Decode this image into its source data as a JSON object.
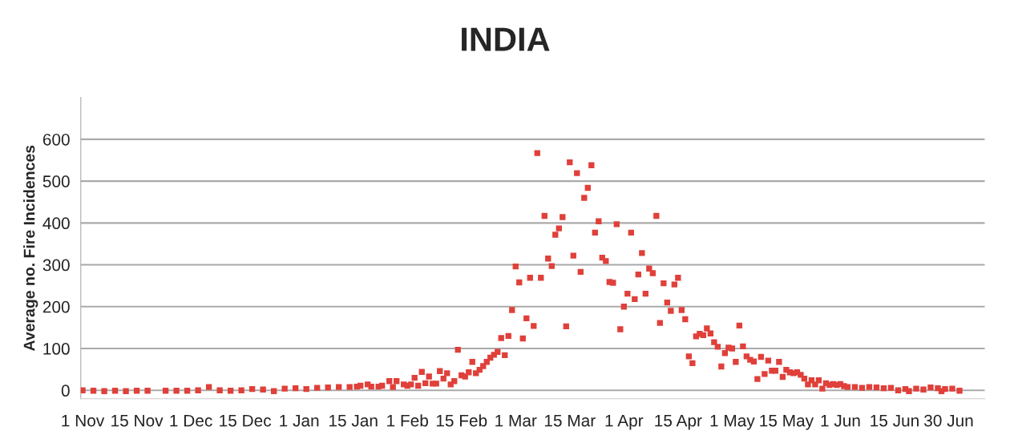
{
  "chart_data": {
    "type": "scatter",
    "title": "INDIA",
    "ylabel": "Average no. Fire Incidences",
    "categories": [
      "1 Nov",
      null,
      null,
      null,
      null,
      null,
      null,
      null,
      null,
      null,
      null,
      null,
      null,
      null,
      null,
      "15 Nov",
      null,
      null,
      null,
      null,
      null,
      null,
      null,
      null,
      null,
      null,
      null,
      null,
      null,
      null,
      "1 Dec",
      null,
      null,
      null,
      null,
      null,
      null,
      null,
      null,
      null,
      null,
      null,
      null,
      null,
      null,
      "15 Dec",
      null,
      null,
      null,
      null,
      null,
      null,
      null,
      null,
      null,
      null,
      null,
      null,
      null,
      null,
      "1 Jan",
      null,
      null,
      null,
      null,
      null,
      null,
      null,
      null,
      null,
      null,
      null,
      null,
      null,
      null,
      "15 Jan",
      null,
      null,
      null,
      null,
      null,
      null,
      null,
      null,
      null,
      null,
      null,
      null,
      null,
      null,
      "1 Feb",
      null,
      null,
      null,
      null,
      null,
      null,
      null,
      null,
      null,
      null,
      null,
      null,
      null,
      null,
      "15 Feb",
      null,
      null,
      null,
      null,
      null,
      null,
      null,
      null,
      null,
      null,
      null,
      null,
      null,
      null,
      "1 Mar",
      null,
      null,
      null,
      null,
      null,
      null,
      null,
      null,
      null,
      null,
      null,
      null,
      null,
      null,
      "15 Mar",
      null,
      null,
      null,
      null,
      null,
      null,
      null,
      null,
      null,
      null,
      null,
      null,
      null,
      null,
      "1 Apr",
      null,
      null,
      null,
      null,
      null,
      null,
      null,
      null,
      null,
      null,
      null,
      null,
      null,
      null,
      "15 Apr",
      null,
      null,
      null,
      null,
      null,
      null,
      null,
      null,
      null,
      null,
      null,
      null,
      null,
      null,
      "1 May",
      null,
      null,
      null,
      null,
      null,
      null,
      null,
      null,
      null,
      null,
      null,
      null,
      null,
      null,
      "15 May",
      null,
      null,
      null,
      null,
      null,
      null,
      null,
      null,
      null,
      null,
      null,
      null,
      null,
      null,
      "1 Jun",
      null,
      null,
      null,
      null,
      null,
      null,
      null,
      null,
      null,
      null,
      null,
      null,
      null,
      null,
      "15 Jun",
      null,
      null,
      null,
      null,
      null,
      null,
      null,
      null,
      null,
      null,
      null,
      null,
      null,
      null,
      "30 Jun",
      null,
      null,
      null
    ],
    "series": [
      {
        "color": "#e0403a",
        "values": [
          0,
          null,
          null,
          -1,
          null,
          null,
          -2,
          null,
          null,
          -1,
          null,
          null,
          -2,
          null,
          null,
          -1,
          null,
          null,
          -1,
          null,
          null,
          null,
          null,
          -1,
          null,
          null,
          -1,
          null,
          null,
          -1,
          null,
          null,
          0,
          null,
          null,
          8,
          null,
          null,
          0,
          null,
          null,
          -1,
          null,
          null,
          0,
          null,
          null,
          3,
          null,
          null,
          2,
          null,
          null,
          -2,
          null,
          null,
          4,
          null,
          null,
          5,
          null,
          null,
          3,
          null,
          null,
          6,
          null,
          null,
          7,
          null,
          null,
          8,
          null,
          null,
          8,
          null,
          9,
          11,
          null,
          14,
          9,
          null,
          9,
          11,
          null,
          22,
          8,
          22,
          null,
          14,
          11,
          14,
          30,
          11,
          44,
          17,
          33,
          16,
          16,
          46,
          28,
          41,
          14,
          22,
          97,
          36,
          33,
          43,
          68,
          41,
          49,
          58,
          68,
          78,
          85,
          92,
          125,
          84,
          130,
          192,
          296,
          258,
          124,
          172,
          269,
          154,
          567,
          269,
          417,
          315,
          297,
          372,
          387,
          414,
          153,
          545,
          322,
          519,
          283,
          460,
          484,
          538,
          377,
          404,
          317,
          309,
          259,
          257,
          397,
          146,
          200,
          231,
          377,
          218,
          277,
          328,
          231,
          291,
          280,
          417,
          161,
          256,
          210,
          190,
          253,
          269,
          192,
          170,
          81,
          65,
          129,
          135,
          132,
          148,
          136,
          115,
          104,
          57,
          89,
          102,
          100,
          68,
          155,
          105,
          81,
          73,
          69,
          27,
          80,
          39,
          71,
          47,
          47,
          68,
          32,
          49,
          43,
          41,
          43,
          37,
          28,
          14,
          24,
          14,
          24,
          4,
          17,
          13,
          15,
          13,
          15,
          10,
          8,
          null,
          8,
          null,
          6,
          null,
          8,
          null,
          7,
          null,
          5,
          null,
          6,
          null,
          0,
          null,
          3,
          -2,
          null,
          4,
          null,
          2,
          null,
          7,
          null,
          5,
          -2,
          3,
          null,
          4,
          null,
          -1
        ]
      }
    ],
    "ylim": [
      -20,
      700
    ],
    "yticks": [
      0,
      100,
      200,
      300,
      400,
      500,
      600
    ],
    "grid": "y",
    "marker": "square"
  }
}
